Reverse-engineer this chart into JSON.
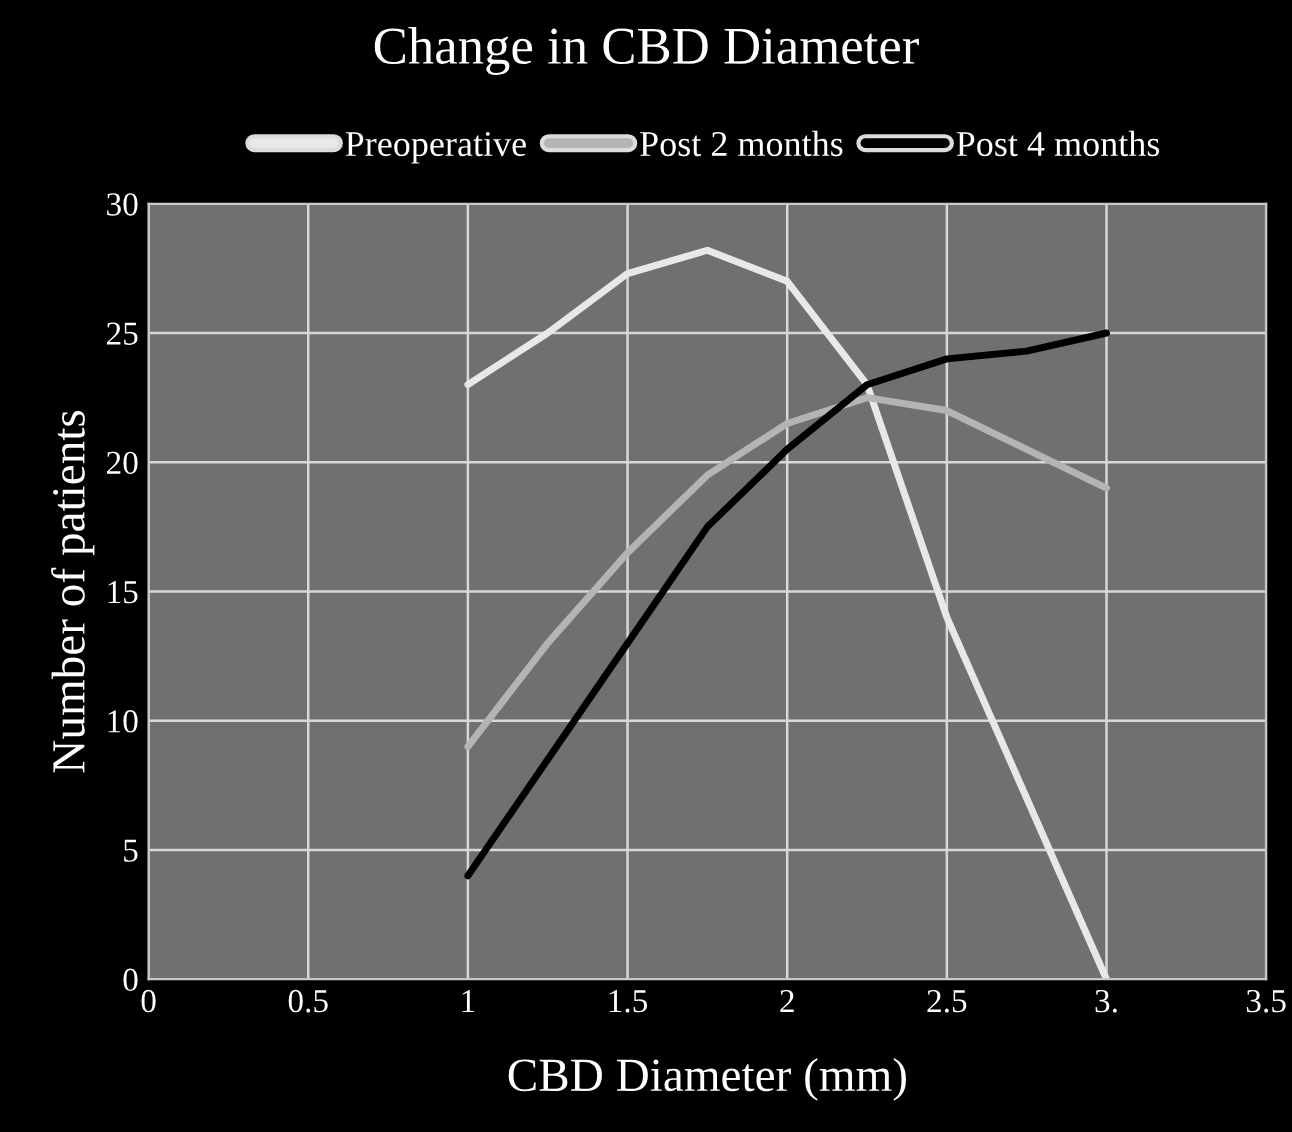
{
  "chart_data": {
    "type": "line",
    "title": "Change in CBD Diameter",
    "xlabel": "CBD Diameter (mm)",
    "ylabel": "Number of patients",
    "series": [
      {
        "name": "Preoperative",
        "color": "#e8e8e8",
        "x": [
          1,
          1.25,
          1.5,
          1.75,
          2,
          2.25,
          2.5,
          2.75,
          3
        ],
        "values": [
          23,
          25,
          27.3,
          28.2,
          27,
          23,
          14,
          7,
          0
        ]
      },
      {
        "name": "Post 2 months",
        "color": "#b4b4b4",
        "x": [
          1,
          1.25,
          1.5,
          1.75,
          2,
          2.25,
          2.5,
          2.75,
          3
        ],
        "values": [
          9,
          13,
          16.5,
          19.5,
          21.5,
          22.5,
          22,
          20.5,
          19
        ]
      },
      {
        "name": "Post 4 months",
        "color": "#000000",
        "x": [
          1,
          1.25,
          1.5,
          1.75,
          2,
          2.25,
          2.5,
          2.75,
          3
        ],
        "values": [
          4,
          8.5,
          13,
          17.5,
          20.5,
          23,
          24,
          24.3,
          25
        ]
      }
    ],
    "xlim": [
      0,
      3.5
    ],
    "ylim": [
      0,
      30
    ],
    "xticks": [
      0,
      0.5,
      1,
      1.5,
      2,
      2.5,
      {
        "value": 3,
        "label": "3."
      },
      3.5
    ],
    "yticks": [
      0,
      5,
      10,
      15,
      20,
      25,
      30
    ],
    "grid": true,
    "legend": "top",
    "marker": "none",
    "line_style": "solid"
  }
}
